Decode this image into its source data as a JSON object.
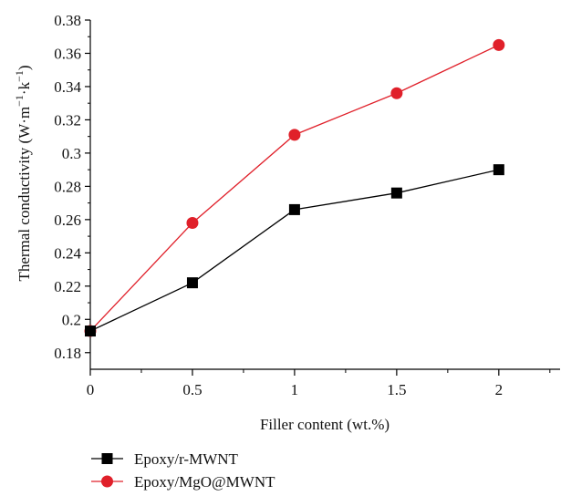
{
  "chart_data": {
    "type": "line",
    "xlabel": "Filler content (wt.%)",
    "ylabel": "Thermal conductivity (W·m",
    "ylabel_sup1": "−1",
    "ylabel_mid": "·k",
    "ylabel_sup2": "−1",
    "ylabel_end": ")",
    "xlim": [
      0,
      2.3
    ],
    "ylim": [
      0.17,
      0.38
    ],
    "x_ticks": [
      0,
      0.5,
      1,
      1.5,
      2
    ],
    "x_tick_labels": [
      "0",
      "0.5",
      "1",
      "1.5",
      "2"
    ],
    "y_ticks": [
      0.18,
      0.2,
      0.22,
      0.24,
      0.26,
      0.28,
      0.3,
      0.32,
      0.34,
      0.36,
      0.38
    ],
    "y_tick_labels": [
      "0.18",
      "0.2",
      "0.22",
      "0.24",
      "0.26",
      "0.28",
      "0.3",
      "0.32",
      "0.34",
      "0.36",
      "0.38"
    ],
    "grid": false,
    "legend_position": "bottom-left",
    "series": [
      {
        "name": "Epoxy/r-MWNT",
        "marker": "square",
        "color": "#000000",
        "x": [
          0,
          0.5,
          1,
          1.5,
          2
        ],
        "y": [
          0.193,
          0.222,
          0.266,
          0.276,
          0.29
        ]
      },
      {
        "name": "Epoxy/MgO@MWNT",
        "marker": "circle",
        "color": "#e0202a",
        "x": [
          0,
          0.5,
          1,
          1.5,
          2
        ],
        "y": [
          0.193,
          0.258,
          0.311,
          0.336,
          0.365
        ]
      }
    ]
  }
}
